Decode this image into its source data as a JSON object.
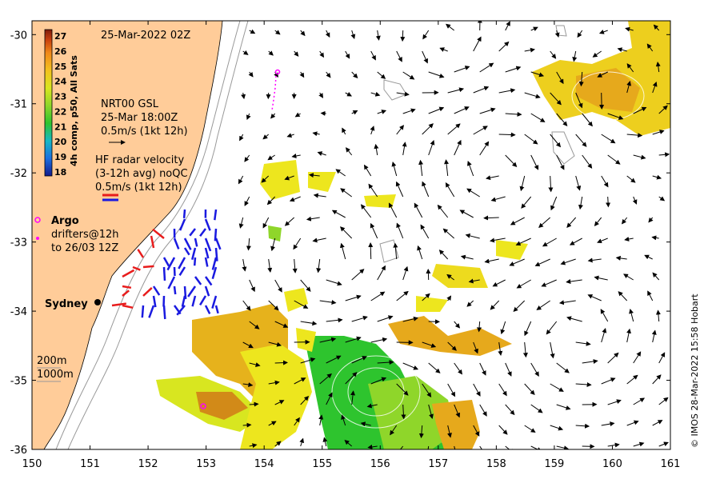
{
  "map": {
    "title": "25-Mar-2022 02Z",
    "colors": {
      "land": "#FFCC99",
      "ocean": "#FFFFFF",
      "hf_radar_red": "#E81C1C",
      "hf_radar_blue": "#1A1AE0",
      "argo": "#FF00FF",
      "warm_sst": "#F2A21A",
      "mid_sst": "#EDE61E",
      "cool_sst": "#2EC42E"
    },
    "lon_ticks": [
      "150",
      "151",
      "152",
      "153",
      "154",
      "155",
      "156",
      "157",
      "158",
      "159",
      "160",
      "161"
    ],
    "lat_ticks": [
      "-30",
      "-31",
      "-32",
      "-33",
      "-34",
      "-35",
      "-36"
    ],
    "lon_range": [
      150,
      161
    ],
    "lat_range": [
      -36,
      -29.8
    ],
    "colorbar": {
      "title": "4h comp, p50, All Sats",
      "ticks": [
        "27",
        "26",
        "25",
        "24",
        "23",
        "22",
        "21",
        "20",
        "19",
        "18"
      ],
      "colors": [
        "#7E1B0A",
        "#C8400E",
        "#F0891A",
        "#F3C21E",
        "#D8E620",
        "#8FD62A",
        "#2EC42E",
        "#16B8C4",
        "#1B6FE0",
        "#131A8C"
      ]
    },
    "legend": {
      "model_name": "NRT00 GSL",
      "model_time": "25-Mar 18:00Z",
      "model_scale": "0.5m/s (1kt 12h)",
      "radar_line1": "HF radar velocity",
      "radar_line2": "(3-12h avg) noQC",
      "radar_scale": "0.5m/s (1kt 12h)",
      "argo": "Argo",
      "drifters_line1": "drifters@12h",
      "drifters_line2": "to 26/03 12Z"
    },
    "place": "Sydney",
    "depth_labels": [
      "200m",
      "1000m"
    ],
    "credit": "© IMOS 28-Mar-2022 15:58 Hobart"
  }
}
